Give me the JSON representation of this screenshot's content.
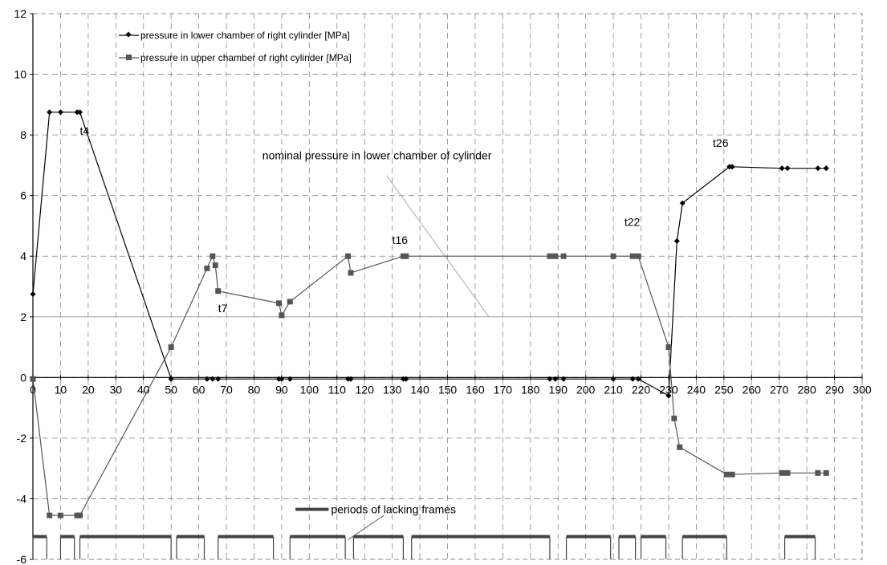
{
  "chart_data": {
    "type": "line",
    "xlim": [
      0,
      300
    ],
    "ylim": [
      -6,
      12
    ],
    "x_ticks": [
      0,
      10,
      20,
      30,
      40,
      50,
      60,
      70,
      80,
      90,
      100,
      110,
      120,
      130,
      140,
      150,
      160,
      170,
      180,
      190,
      200,
      210,
      220,
      230,
      240,
      250,
      260,
      270,
      280,
      290,
      300
    ],
    "y_ticks": [
      -6,
      -4,
      -2,
      0,
      2,
      4,
      6,
      8,
      10,
      12
    ],
    "grid": true,
    "legend_position": "top-left",
    "series": [
      {
        "name": "pressure in  lower chamber of right cylinder [MPa]",
        "marker": "diamond",
        "color": "#000000",
        "points": [
          [
            0,
            2.75
          ],
          [
            6,
            8.75
          ],
          [
            10,
            8.75
          ],
          [
            16,
            8.75
          ],
          [
            17,
            8.75
          ],
          [
            50,
            -0.05
          ],
          [
            63,
            -0.05
          ],
          [
            65,
            -0.05
          ],
          [
            67,
            -0.05
          ],
          [
            89,
            -0.05
          ],
          [
            90,
            -0.05
          ],
          [
            93,
            -0.05
          ],
          [
            114,
            -0.05
          ],
          [
            115,
            -0.05
          ],
          [
            134,
            -0.05
          ],
          [
            135,
            -0.05
          ],
          [
            187,
            -0.05
          ],
          [
            189,
            -0.05
          ],
          [
            192,
            -0.05
          ],
          [
            210,
            -0.05
          ],
          [
            217,
            -0.05
          ],
          [
            219,
            -0.05
          ],
          [
            230,
            -0.6
          ],
          [
            233,
            4.5
          ],
          [
            235,
            5.75
          ],
          [
            252,
            6.95
          ],
          [
            253,
            6.95
          ],
          [
            271,
            6.9
          ],
          [
            273,
            6.9
          ],
          [
            284,
            6.9
          ],
          [
            287,
            6.9
          ]
        ]
      },
      {
        "name": "pressure in  upper chamber of right cylinder [MPa]",
        "marker": "square",
        "color": "#555555",
        "points": [
          [
            0,
            -0.05
          ],
          [
            6,
            -4.55
          ],
          [
            10,
            -4.55
          ],
          [
            16,
            -4.55
          ],
          [
            17,
            -4.55
          ],
          [
            50,
            1.0
          ],
          [
            63,
            3.6
          ],
          [
            65,
            4.0
          ],
          [
            66,
            3.7
          ],
          [
            67,
            2.85
          ],
          [
            89,
            2.45
          ],
          [
            90,
            2.05
          ],
          [
            93,
            2.5
          ],
          [
            114,
            4.0
          ],
          [
            115,
            3.45
          ],
          [
            134,
            4.0
          ],
          [
            135,
            4.0
          ],
          [
            187,
            4.0
          ],
          [
            189,
            4.0
          ],
          [
            192,
            4.0
          ],
          [
            210,
            4.0
          ],
          [
            217,
            4.0
          ],
          [
            219,
            4.0
          ],
          [
            230,
            1.0
          ],
          [
            232,
            -1.35
          ],
          [
            234,
            -2.3
          ],
          [
            251,
            -3.2
          ],
          [
            253,
            -3.2
          ],
          [
            271,
            -3.15
          ],
          [
            273,
            -3.15
          ],
          [
            284,
            -3.15
          ],
          [
            287,
            -3.15
          ]
        ]
      }
    ],
    "nominal_pressure": 2,
    "annotations": [
      {
        "text": "t4",
        "x": 17,
        "y": 8
      },
      {
        "text": "t7",
        "x": 67,
        "y": 2.15
      },
      {
        "text": "t16",
        "x": 130,
        "y": 4.4
      },
      {
        "text": "t22",
        "x": 214,
        "y": 5
      },
      {
        "text": "t26",
        "x": 246,
        "y": 7.6
      }
    ],
    "nominal_label": "nominal pressure in lower chamber of cylinder",
    "nominal_label_pos": {
      "x": 83,
      "y": 7.2
    },
    "nominal_pointer": [
      [
        128,
        6.65
      ],
      [
        165,
        2
      ]
    ],
    "periods_label": "periods of  lacking frames",
    "periods_legend": {
      "x1": 95,
      "x2": 107,
      "y": -4.35
    },
    "periods_pointer": [
      [
        127,
        -4.55
      ],
      [
        114,
        -5.35
      ]
    ],
    "lacking_frames_level": -5.25,
    "lacking_frames": [
      [
        0,
        5
      ],
      [
        10,
        15
      ],
      [
        17,
        50
      ],
      [
        52,
        62
      ],
      [
        67,
        87
      ],
      [
        93,
        113
      ],
      [
        116,
        134
      ],
      [
        137,
        187
      ],
      [
        193,
        209
      ],
      [
        212,
        218
      ],
      [
        220,
        229
      ],
      [
        235,
        251
      ],
      [
        272,
        283
      ]
    ]
  }
}
